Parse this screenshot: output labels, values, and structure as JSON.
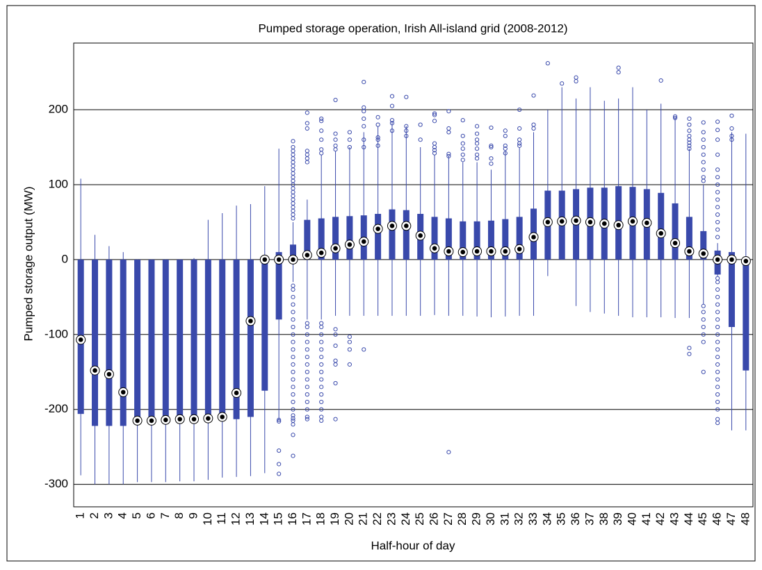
{
  "chart_data": {
    "type": "box",
    "title": "Pumped storage operation, Irish All-island grid (2008-2012)",
    "x_label": "Half-hour of day",
    "y_label": "Pumped storage output (MW)",
    "categories": [
      "1",
      "2",
      "3",
      "4",
      "5",
      "6",
      "7",
      "8",
      "9",
      "10",
      "11",
      "12",
      "13",
      "14",
      "15",
      "16",
      "17",
      "18",
      "19",
      "20",
      "21",
      "22",
      "23",
      "24",
      "25",
      "26",
      "27",
      "28",
      "29",
      "30",
      "31",
      "32",
      "33",
      "34",
      "35",
      "36",
      "37",
      "38",
      "39",
      "40",
      "41",
      "42",
      "43",
      "44",
      "45",
      "46",
      "47",
      "48"
    ],
    "whisker_low": [
      -288,
      -300,
      -300,
      -300,
      -297,
      -297,
      -297,
      -296,
      -296,
      -294,
      -291,
      -290,
      -289,
      -285,
      -215,
      -30,
      -80,
      -80,
      -75,
      -75,
      -75,
      -75,
      -75,
      -75,
      -75,
      -74,
      -75,
      -75,
      -76,
      -77,
      -76,
      -75,
      -75,
      -22,
      0,
      -62,
      -70,
      -72,
      -75,
      -77,
      -77,
      -77,
      -78,
      -78,
      -60,
      -22,
      -228,
      -228
    ],
    "q1": [
      -206,
      -222,
      -222,
      -222,
      -218,
      -218,
      -218,
      -218,
      -218,
      -215,
      -213,
      -213,
      -210,
      -175,
      -80,
      0,
      0,
      0,
      0,
      0,
      0,
      0,
      0,
      0,
      0,
      0,
      0,
      0,
      0,
      0,
      0,
      0,
      0,
      0,
      0,
      0,
      0,
      0,
      0,
      0,
      0,
      0,
      0,
      0,
      0,
      -20,
      -90,
      -148
    ],
    "median": [
      -107,
      -148,
      -153,
      -177,
      -215,
      -215,
      -214,
      -213,
      -213,
      -212,
      -210,
      -178,
      -82,
      0,
      0,
      0,
      6,
      9,
      15,
      20,
      24,
      41,
      45,
      45,
      32,
      15,
      11,
      10,
      11,
      11,
      11,
      14,
      30,
      50,
      51,
      52,
      50,
      48,
      46,
      51,
      49,
      35,
      22,
      11,
      8,
      0,
      0,
      -2
    ],
    "q3": [
      0,
      0,
      0,
      0,
      0,
      0,
      0,
      0,
      0,
      0,
      0,
      0,
      0,
      0,
      10,
      20,
      53,
      55,
      57,
      58,
      59,
      61,
      67,
      66,
      61,
      57,
      55,
      51,
      51,
      52,
      54,
      57,
      68,
      92,
      92,
      94,
      96,
      96,
      98,
      97,
      94,
      89,
      75,
      57,
      38,
      12,
      10,
      0
    ],
    "whisker_high": [
      108,
      33,
      18,
      10,
      0,
      0,
      0,
      0,
      2,
      53,
      62,
      72,
      74,
      98,
      148,
      50,
      80,
      140,
      145,
      150,
      170,
      178,
      185,
      178,
      150,
      140,
      138,
      130,
      130,
      120,
      145,
      150,
      170,
      200,
      230,
      215,
      230,
      212,
      215,
      230,
      200,
      208,
      190,
      148,
      100,
      22,
      170,
      168
    ],
    "outliers": [
      [],
      [],
      [],
      [],
      [],
      [],
      [],
      [],
      [],
      [],
      [],
      [],
      [],
      [],
      [
        -214,
        -216,
        -255,
        -273,
        -286
      ],
      [
        -262,
        -234,
        -220,
        -215,
        -212,
        -208,
        -200,
        -190,
        -180,
        -170,
        -160,
        -150,
        -140,
        -130,
        -120,
        -110,
        -100,
        -90,
        -80,
        -70,
        -60,
        -50,
        -40,
        -35,
        55,
        60,
        65,
        70,
        75,
        80,
        85,
        90,
        95,
        100,
        105,
        110,
        115,
        120,
        125,
        130,
        135,
        140,
        145,
        150,
        158
      ],
      [
        -213,
        -210,
        -200,
        -190,
        -180,
        -170,
        -160,
        -150,
        -140,
        -130,
        -120,
        -110,
        -100,
        -90,
        -85,
        130,
        135,
        140,
        145,
        175,
        182,
        196
      ],
      [
        -215,
        -210,
        -200,
        -190,
        -180,
        -170,
        -160,
        -150,
        -140,
        -130,
        -120,
        -110,
        -100,
        -90,
        -85,
        142,
        147,
        160,
        172,
        185,
        188
      ],
      [
        -213,
        -165,
        -140,
        -135,
        -115,
        -100,
        -93,
        147,
        152,
        160,
        168,
        213
      ],
      [
        -140,
        -120,
        -110,
        -103,
        150,
        160,
        170
      ],
      [
        -120,
        150,
        160,
        178,
        188,
        198,
        203,
        237
      ],
      [
        152,
        160,
        163,
        180,
        190
      ],
      [
        172,
        182,
        186,
        205,
        218
      ],
      [
        165,
        172,
        178,
        217
      ],
      [
        160,
        180
      ],
      [
        142,
        146,
        150,
        155,
        185,
        193,
        195
      ],
      [
        -257,
        138,
        141,
        170,
        175,
        198
      ],
      [
        133,
        140,
        148,
        155,
        165,
        186
      ],
      [
        135,
        140,
        148,
        155,
        160,
        168,
        178
      ],
      [
        128,
        135,
        150,
        152,
        176
      ],
      [
        142,
        148,
        152,
        165,
        172
      ],
      [
        152,
        155,
        160,
        175,
        200
      ],
      [
        175,
        180,
        219
      ],
      [
        262
      ],
      [
        235
      ],
      [
        238,
        243
      ],
      [],
      [],
      [
        250,
        256
      ],
      [],
      [],
      [
        239
      ],
      [
        189,
        191
      ],
      [
        -118,
        -126,
        148,
        152,
        156,
        160,
        165,
        172,
        180,
        188
      ],
      [
        -150,
        -110,
        -100,
        -90,
        -80,
        -70,
        -62,
        105,
        110,
        120,
        130,
        140,
        150,
        160,
        170,
        183
      ],
      [
        -218,
        -213,
        -200,
        -190,
        -180,
        -170,
        -160,
        -150,
        -140,
        -130,
        -120,
        -110,
        -100,
        -90,
        -80,
        -70,
        -60,
        -50,
        -40,
        -30,
        -25,
        30,
        40,
        50,
        60,
        70,
        80,
        90,
        100,
        110,
        120,
        140,
        160,
        173,
        184
      ],
      [
        160,
        165,
        175,
        192
      ],
      []
    ],
    "ylim": [
      -330,
      289
    ],
    "yticks": [
      -300,
      -200,
      -100,
      0,
      100,
      200
    ],
    "grid": true,
    "color": "#3949ab"
  }
}
